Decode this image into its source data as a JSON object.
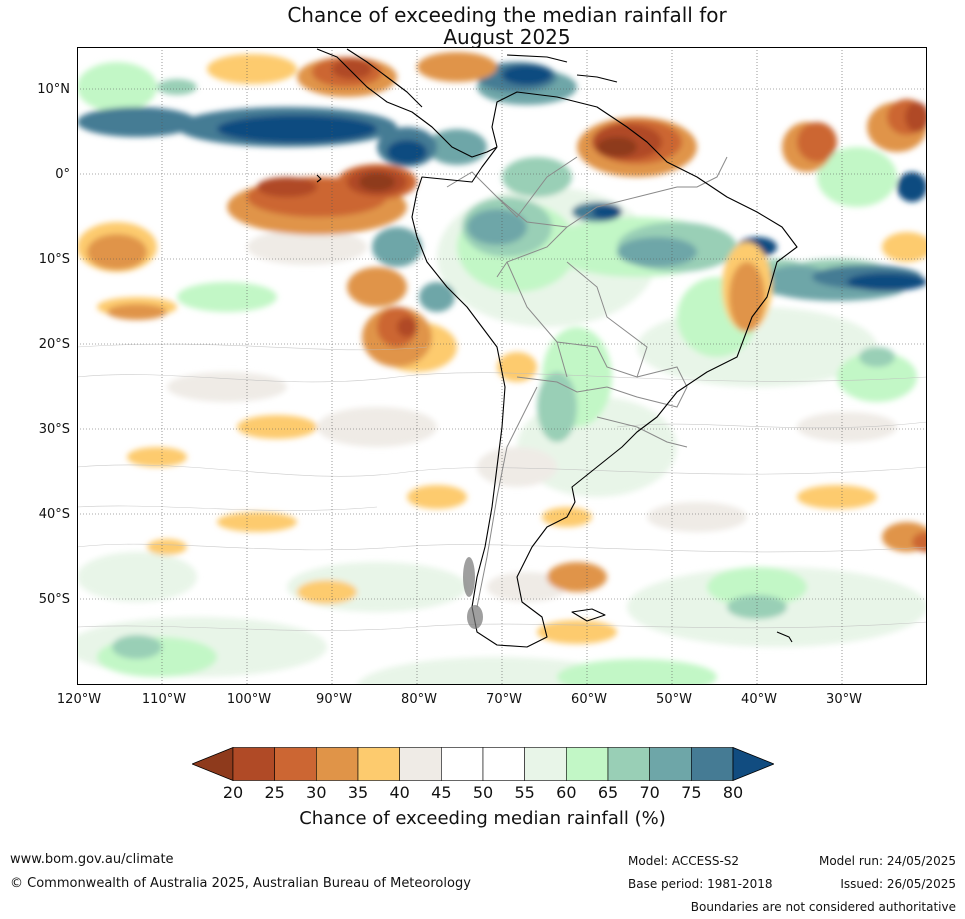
{
  "title": {
    "line1": "Chance of exceeding the median rainfall for",
    "line2": "August 2025"
  },
  "map": {
    "lat_labels": [
      "10°N",
      "0°",
      "10°S",
      "20°S",
      "30°S",
      "40°S",
      "50°S"
    ],
    "lon_labels": [
      "120°W",
      "110°W",
      "100°W",
      "90°W",
      "80°W",
      "70°W",
      "60°W",
      "50°W",
      "40°W",
      "30°W"
    ]
  },
  "colorbar": {
    "ticks": [
      "20",
      "25",
      "30",
      "35",
      "40",
      "45",
      "50",
      "55",
      "60",
      "65",
      "70",
      "75",
      "80"
    ],
    "colors": [
      "#8e3a1c",
      "#b04a26",
      "#cc6633",
      "#e09448",
      "#fdcb6e",
      "#efebe6",
      "#ffffff",
      "#ffffff",
      "#e8f5e8",
      "#c2f7c6",
      "#99cfb6",
      "#6ea6a8",
      "#457b94",
      "#114c80"
    ],
    "label": "Chance of exceeding median rainfall (%)"
  },
  "footer": {
    "website": "www.bom.gov.au/climate",
    "copyright": "© Commonwealth of Australia 2025, Australian Bureau of Meteorology",
    "model": "Model: ACCESS-S2",
    "base_period": "Base period: 1981-2018",
    "model_run": "Model run: 24/05/2025",
    "issued": "Issued: 26/05/2025",
    "disclaimer": "Boundaries are not considered authoritative"
  }
}
